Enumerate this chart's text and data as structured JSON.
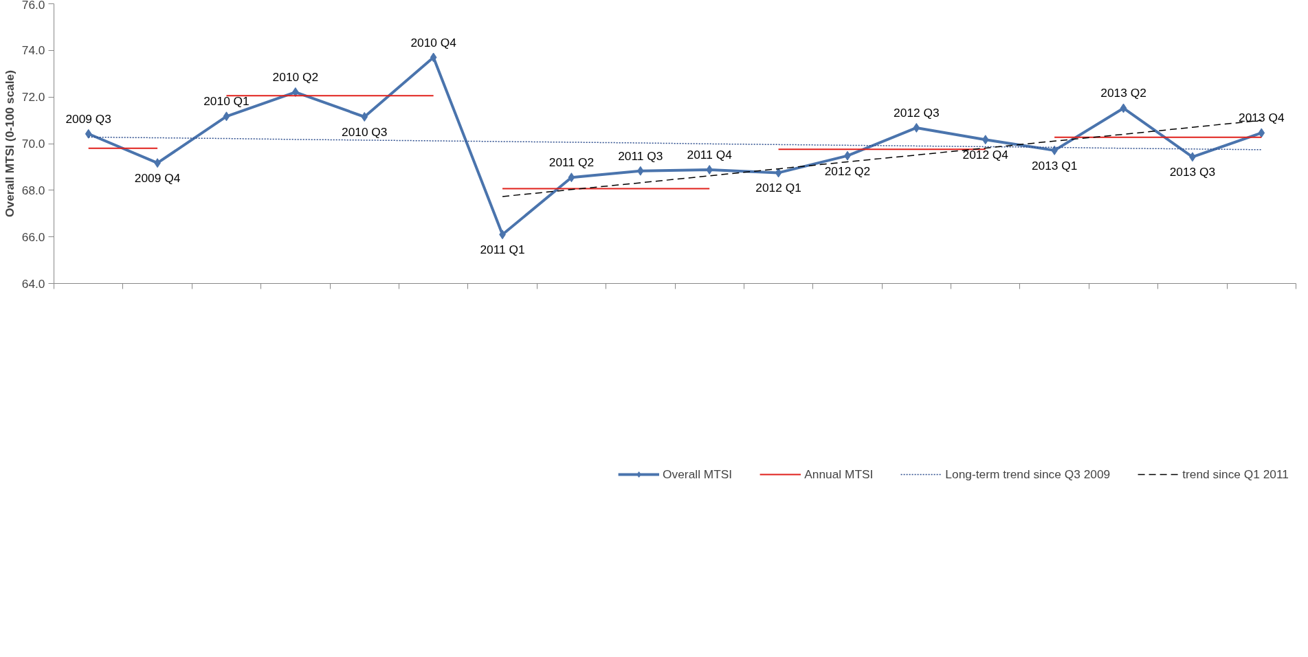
{
  "chart_data": {
    "type": "line",
    "ylabel": "Overall MTSI (0-100 scale)",
    "categories": [
      "2009 Q3",
      "2009 Q4",
      "2010 Q1",
      "2010 Q2",
      "2010 Q3",
      "2010 Q4",
      "2011 Q1",
      "2011 Q2",
      "2011 Q3",
      "2011 Q4",
      "2012 Q1",
      "2012 Q2",
      "2012 Q3",
      "2012 Q4",
      "2013 Q1",
      "2013 Q2",
      "2013 Q3",
      "2013 Q4"
    ],
    "ylim": [
      64,
      76
    ],
    "yticks": [
      {
        "value": 64,
        "label": "64.0"
      },
      {
        "value": 66,
        "label": "66.0"
      },
      {
        "value": 68,
        "label": "68.0"
      },
      {
        "value": 70,
        "label": "70.0"
      },
      {
        "value": 72,
        "label": "72.0"
      },
      {
        "value": 74,
        "label": "74.0"
      },
      {
        "value": 76,
        "label": "76.0"
      }
    ],
    "tick_labels": "y",
    "legend": "bottom",
    "series": [
      {
        "name": "Overall MTSI",
        "color": "#4a74ad",
        "marker": "diamond",
        "line_style": "solid",
        "values": [
          70.42,
          69.17,
          71.17,
          72.21,
          71.15,
          73.7,
          66.1,
          68.55,
          68.83,
          68.88,
          68.75,
          69.48,
          70.68,
          70.17,
          69.71,
          71.52,
          69.43,
          70.46
        ]
      },
      {
        "name": "Annual MTSI",
        "color": "#e0201b",
        "line_style": "solid",
        "values": [
          69.8,
          69.8,
          null,
          null,
          null,
          null,
          null,
          null,
          null,
          null,
          null,
          null,
          null,
          null,
          null,
          null,
          null,
          null
        ]
      },
      {
        "color": "#e0201b",
        "line_style": "solid",
        "values": [
          null,
          null,
          72.06,
          72.06,
          72.06,
          72.06,
          null,
          null,
          null,
          null,
          null,
          null,
          null,
          null,
          null,
          null,
          null,
          null
        ]
      },
      {
        "color": "#e0201b",
        "line_style": "solid",
        "values": [
          null,
          null,
          null,
          null,
          null,
          null,
          68.07,
          68.07,
          68.07,
          68.07,
          null,
          null,
          null,
          null,
          null,
          null,
          null,
          null
        ]
      },
      {
        "color": "#e0201b",
        "line_style": "solid",
        "values": [
          null,
          null,
          null,
          null,
          null,
          null,
          null,
          null,
          null,
          null,
          69.76,
          69.76,
          69.76,
          69.76,
          null,
          null,
          null,
          null
        ]
      },
      {
        "color": "#e0201b",
        "line_style": "solid",
        "values": [
          null,
          null,
          null,
          null,
          null,
          null,
          null,
          null,
          null,
          null,
          null,
          null,
          null,
          null,
          70.27,
          70.27,
          70.27,
          70.27
        ]
      },
      {
        "name": "Long-term trend since Q3 2009",
        "color": "#2a4b8c",
        "line_style": "dotted",
        "values": [
          70.28,
          70.25,
          70.22,
          70.18,
          70.15,
          70.12,
          70.09,
          70.06,
          70.03,
          69.99,
          69.96,
          69.93,
          69.9,
          69.87,
          69.84,
          69.8,
          69.77,
          69.74
        ]
      },
      {
        "name": "trend since Q1 2011",
        "color": "#000000",
        "line_style": "dashed",
        "values": [
          null,
          null,
          null,
          null,
          null,
          null,
          67.73,
          68.03,
          68.32,
          68.62,
          68.92,
          69.22,
          69.51,
          69.81,
          70.11,
          70.4,
          70.7,
          71.0
        ]
      }
    ]
  }
}
